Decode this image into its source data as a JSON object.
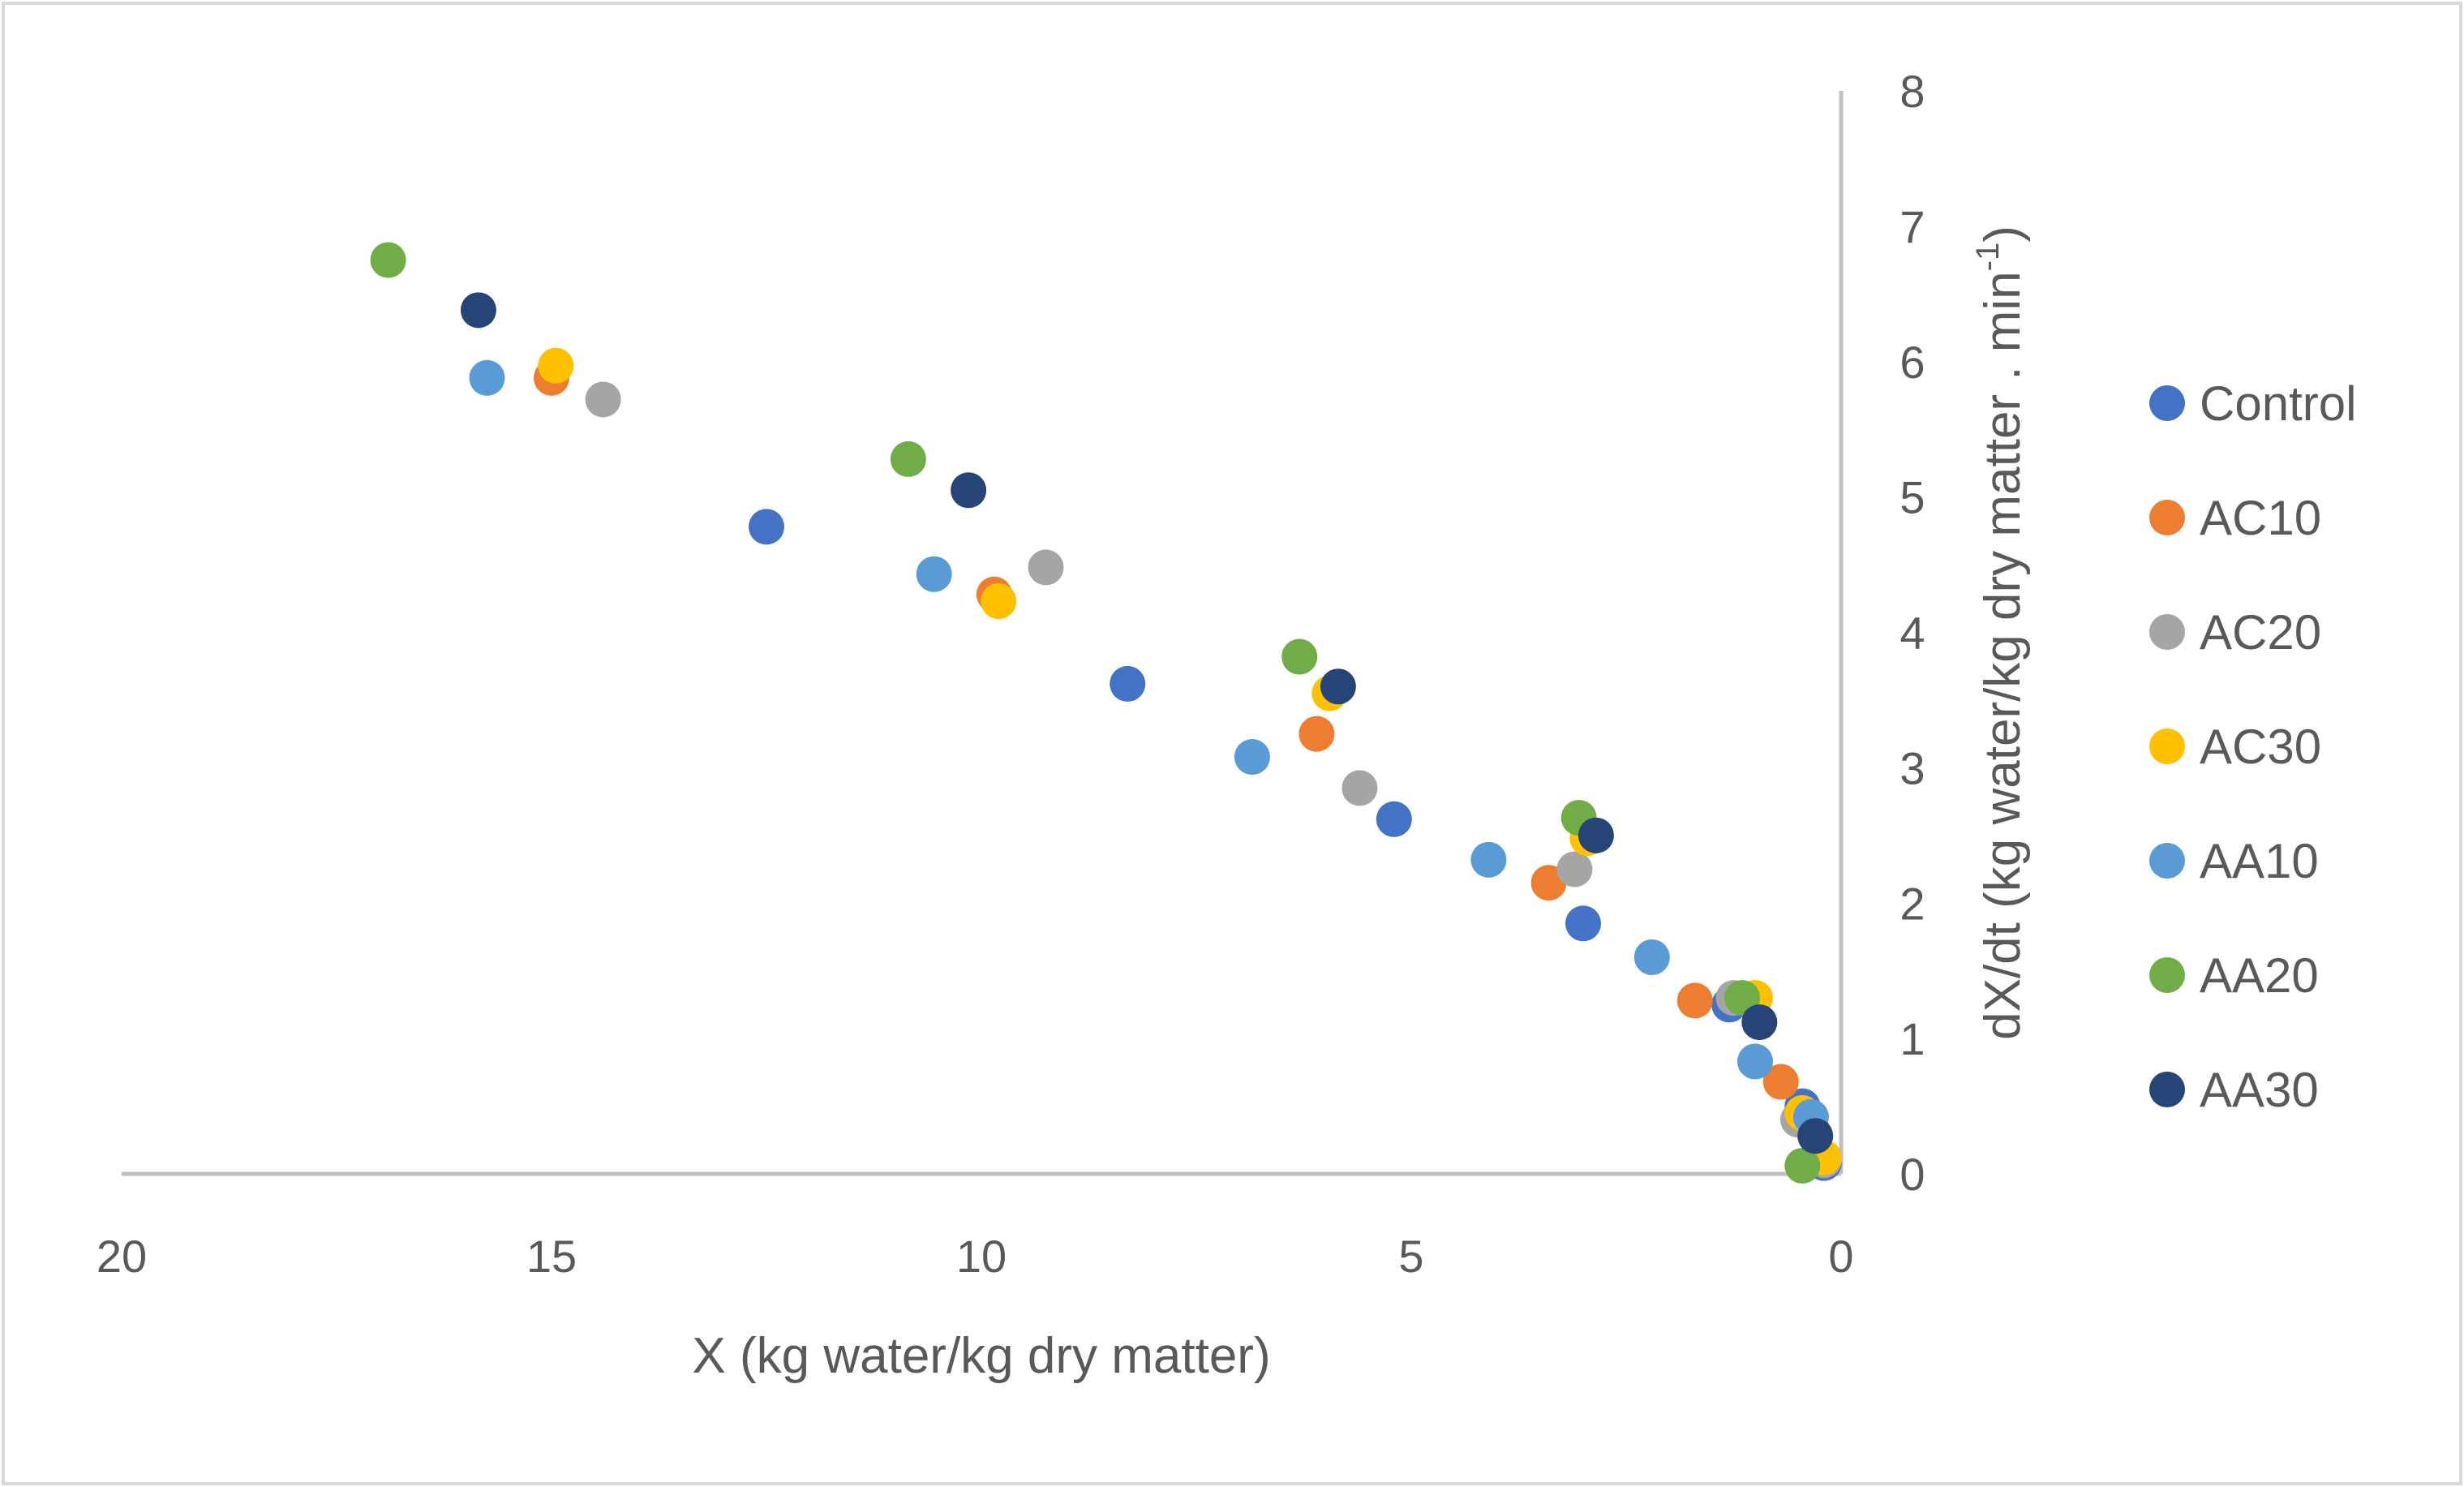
{
  "chart_data": {
    "type": "scatter",
    "title": "",
    "xlabel": "X (kg water/kg dry matter)",
    "ylabel_main": "dX/dt (kg water/kg dry matter . min",
    "ylabel_sup": "-1",
    "ylabel_end": ")",
    "x_reversed": true,
    "xlim": [
      0,
      20
    ],
    "ylim": [
      0,
      8
    ],
    "x_ticks": [
      20,
      15,
      10,
      5,
      0
    ],
    "y_ticks": [
      0,
      1,
      2,
      3,
      4,
      5,
      6,
      7,
      8
    ],
    "legend_position": "right",
    "grid": false,
    "series": [
      {
        "name": "Control",
        "color": "#4472C4",
        "points": [
          [
            12.5,
            4.78
          ],
          [
            8.3,
            3.62
          ],
          [
            5.2,
            2.62
          ],
          [
            3.0,
            1.85
          ],
          [
            1.3,
            1.25
          ],
          [
            0.45,
            0.5
          ],
          [
            0.2,
            0.08
          ]
        ]
      },
      {
        "name": "AC10",
        "color": "#ED7D31",
        "points": [
          [
            15.0,
            5.88
          ],
          [
            9.85,
            4.28
          ],
          [
            6.1,
            3.25
          ],
          [
            3.4,
            2.15
          ],
          [
            1.7,
            1.28
          ],
          [
            0.7,
            0.68
          ],
          [
            0.35,
            0.35
          ]
        ]
      },
      {
        "name": "AC20",
        "color": "#A5A5A5",
        "points": [
          [
            14.4,
            5.72
          ],
          [
            9.25,
            4.48
          ],
          [
            5.6,
            2.85
          ],
          [
            3.1,
            2.25
          ],
          [
            1.25,
            1.3
          ],
          [
            0.5,
            0.4
          ],
          [
            0.2,
            0.1
          ]
        ]
      },
      {
        "name": "AC30",
        "color": "#FFC000",
        "points": [
          [
            14.95,
            5.97
          ],
          [
            9.8,
            4.23
          ],
          [
            5.95,
            3.55
          ],
          [
            2.95,
            2.48
          ],
          [
            1.0,
            1.3
          ],
          [
            0.45,
            0.45
          ],
          [
            0.2,
            0.12
          ]
        ]
      },
      {
        "name": "AA10",
        "color": "#5B9BD5",
        "points": [
          [
            15.75,
            5.88
          ],
          [
            10.55,
            4.43
          ],
          [
            6.85,
            3.08
          ],
          [
            4.1,
            2.32
          ],
          [
            2.2,
            1.6
          ],
          [
            1.0,
            0.83
          ],
          [
            0.35,
            0.42
          ]
        ]
      },
      {
        "name": "AA20",
        "color": "#70AD47",
        "points": [
          [
            16.9,
            6.75
          ],
          [
            10.85,
            5.28
          ],
          [
            6.3,
            3.82
          ],
          [
            3.05,
            2.63
          ],
          [
            1.15,
            1.3
          ],
          [
            0.45,
            0.06
          ]
        ]
      },
      {
        "name": "AA30",
        "color": "#264478",
        "points": [
          [
            15.85,
            6.38
          ],
          [
            10.15,
            5.05
          ],
          [
            5.85,
            3.6
          ],
          [
            2.85,
            2.5
          ],
          [
            0.95,
            1.12
          ],
          [
            0.3,
            0.28
          ]
        ]
      }
    ]
  }
}
